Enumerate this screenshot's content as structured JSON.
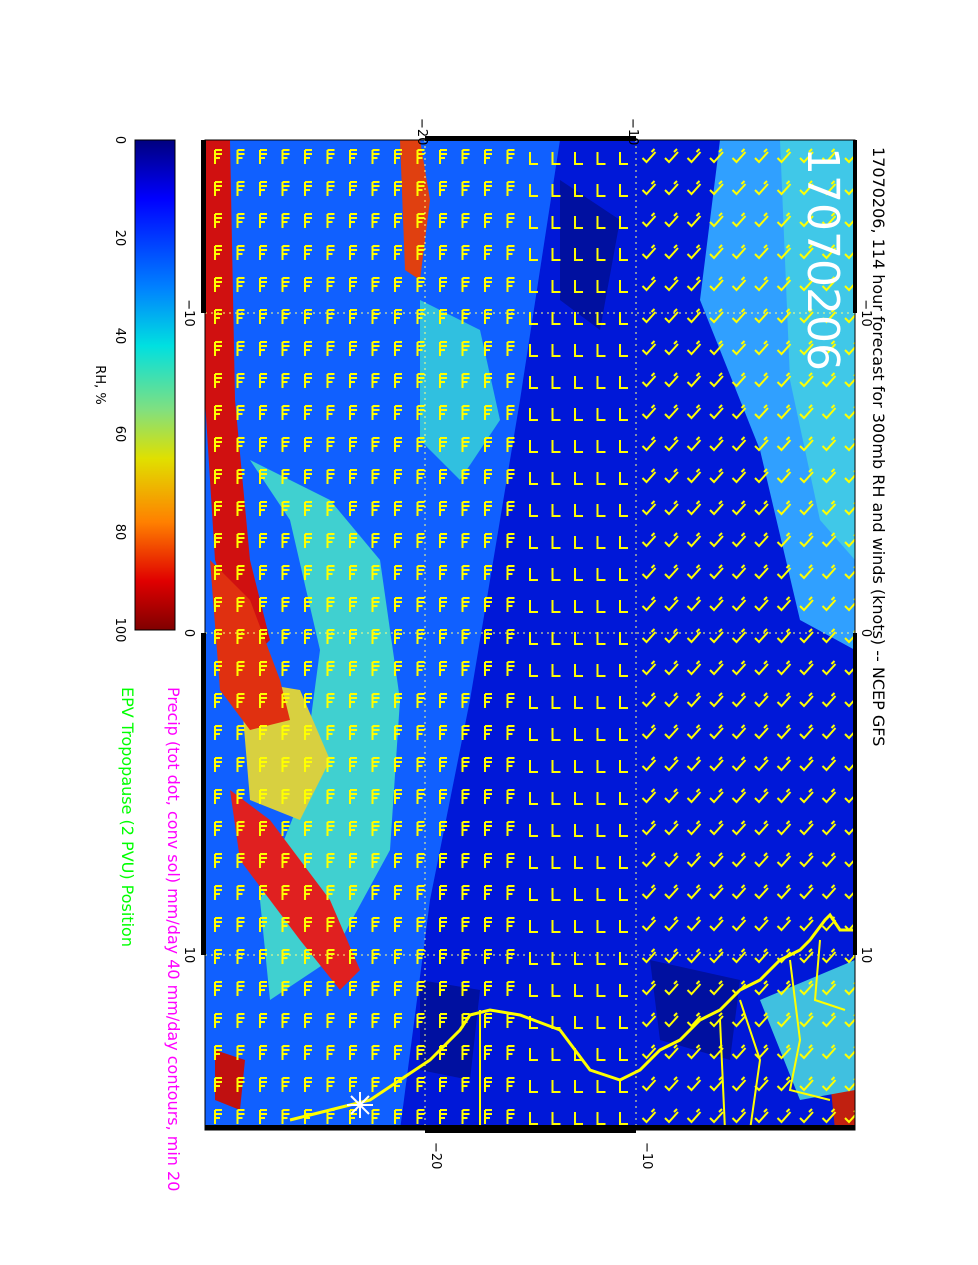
{
  "title": "17070206, 114 hour forecast for 300mb RH and winds (knots) -- NCEP GFS",
  "stamp": "17070206",
  "precip_label": "Precip (tot dot, conv sol) mm/day 40 mm/day contours, min 20",
  "epv_label": "EPV Tropopause (2 PVU) Position",
  "colorbar": {
    "label": "RH, %",
    "ticks": [
      "0",
      "20",
      "40",
      "60",
      "80",
      "100"
    ],
    "colors": [
      "#00007f",
      "#0000ff",
      "#0080ff",
      "#00ffff",
      "#80ff80",
      "#ffff00",
      "#ff8000",
      "#ff0000",
      "#7f0000"
    ]
  },
  "map": {
    "top_ticks": [
      "−20",
      "−10"
    ],
    "bottom_ticks": [
      "−20",
      "−10"
    ],
    "left_ticks": [
      "−10",
      "0",
      "10"
    ],
    "right_ticks": [
      "−10",
      "0",
      "10"
    ],
    "coast_color": "#ffff00",
    "barb_color": "#ffff00",
    "gridline_color": "#ffff80"
  },
  "colors": {
    "title": "#000000",
    "stamp": "#ffffff",
    "precip": "#ff00ff",
    "epv": "#00ff00"
  }
}
